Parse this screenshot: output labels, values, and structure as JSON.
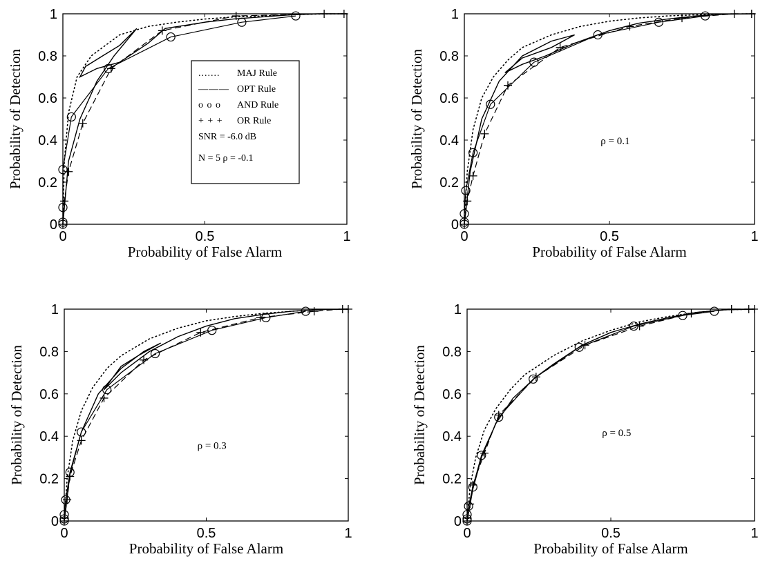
{
  "figure": {
    "legend_entries": [
      {
        "symbol": "dotted-line",
        "glyph": ".......",
        "label": "MAJ Rule"
      },
      {
        "symbol": "solid-line",
        "glyph": "———",
        "label": "OPT Rule"
      },
      {
        "symbol": "circle-marker",
        "glyph": "o o o",
        "label": "AND Rule"
      },
      {
        "symbol": "plus-marker",
        "glyph": "+ + +",
        "label": "OR   Rule"
      }
    ],
    "legend_snr": "SNR = -6.0 dB",
    "legend_n_rho": "N = 5    ρ = -0.1"
  },
  "chart_data": [
    {
      "type": "line",
      "panel": "top-left",
      "annotation": "",
      "xlabel": "Probability of False Alarm",
      "ylabel": "Probability of Detection",
      "xlim": [
        0,
        1
      ],
      "ylim": [
        0,
        1
      ],
      "xticks": [
        0,
        0.5,
        1
      ],
      "yticks": [
        0,
        0.2,
        0.4,
        0.6,
        0.8,
        1
      ],
      "legend": "center-right",
      "series": [
        {
          "name": "MAJ Rule",
          "style": "dotted",
          "x": [
            0,
            0.005,
            0.02,
            0.05,
            0.1,
            0.2,
            0.3,
            0.4,
            0.5,
            0.6,
            0.7,
            0.8,
            0.9,
            1
          ],
          "y": [
            0,
            0.3,
            0.53,
            0.7,
            0.8,
            0.9,
            0.94,
            0.96,
            0.975,
            0.985,
            0.99,
            0.995,
            0.999,
            1
          ]
        },
        {
          "name": "OPT Rule",
          "style": "solid",
          "x": [
            0,
            0.02,
            0.06,
            0.12,
            0.18,
            0.26,
            0.2,
            0.14,
            0.08,
            0.06,
            0.12,
            0.2,
            0.3,
            0.36,
            0.5,
            0.6,
            0.7,
            0.8,
            0.9,
            1
          ],
          "y": [
            0,
            0.3,
            0.5,
            0.68,
            0.8,
            0.93,
            0.85,
            0.8,
            0.75,
            0.7,
            0.74,
            0.77,
            0.86,
            0.93,
            0.96,
            0.975,
            0.985,
            0.995,
            1,
            1
          ]
        },
        {
          "name": "AND Rule",
          "style": "circle",
          "x": [
            0,
            0,
            0,
            0,
            0.03,
            0.16,
            0.38,
            0.63,
            0.82
          ],
          "y": [
            0,
            0.01,
            0.08,
            0.26,
            0.51,
            0.74,
            0.89,
            0.96,
            0.99
          ]
        },
        {
          "name": "OR Rule",
          "style": "plus",
          "x": [
            0,
            0.005,
            0.02,
            0.07,
            0.17,
            0.35,
            0.61,
            0.92,
            0.99
          ],
          "y": [
            0,
            0.11,
            0.25,
            0.48,
            0.74,
            0.92,
            0.99,
            1,
            1
          ]
        }
      ]
    },
    {
      "type": "line",
      "panel": "top-right",
      "annotation": "ρ = 0.1",
      "xlabel": "Probability of False Alarm",
      "ylabel": "Probability of Detection",
      "xlim": [
        0,
        1
      ],
      "ylim": [
        0,
        1
      ],
      "xticks": [
        0,
        0.5,
        1
      ],
      "yticks": [
        0,
        0.2,
        0.4,
        0.6,
        0.8,
        1
      ],
      "series": [
        {
          "name": "MAJ Rule",
          "style": "dotted",
          "x": [
            0,
            0.01,
            0.03,
            0.06,
            0.1,
            0.15,
            0.2,
            0.3,
            0.4,
            0.5,
            0.6,
            0.7,
            0.8,
            0.9,
            1
          ],
          "y": [
            0,
            0.25,
            0.45,
            0.6,
            0.7,
            0.78,
            0.84,
            0.9,
            0.94,
            0.965,
            0.98,
            0.99,
            0.995,
            0.999,
            1
          ]
        },
        {
          "name": "OPT Rule",
          "style": "solid",
          "x": [
            0,
            0.02,
            0.06,
            0.12,
            0.2,
            0.3,
            0.38,
            0.3,
            0.2,
            0.14,
            0.2,
            0.28,
            0.38,
            0.5,
            0.6,
            0.7,
            0.8,
            0.9,
            1
          ],
          "y": [
            0,
            0.25,
            0.5,
            0.68,
            0.8,
            0.87,
            0.9,
            0.84,
            0.79,
            0.72,
            0.76,
            0.8,
            0.86,
            0.92,
            0.955,
            0.975,
            0.99,
            0.998,
            1
          ]
        },
        {
          "name": "AND Rule",
          "style": "circle",
          "x": [
            0,
            0,
            0,
            0.005,
            0.03,
            0.09,
            0.24,
            0.46,
            0.67,
            0.83
          ],
          "y": [
            0,
            0.01,
            0.05,
            0.16,
            0.34,
            0.57,
            0.77,
            0.9,
            0.96,
            0.99
          ]
        },
        {
          "name": "OR Rule",
          "style": "plus",
          "x": [
            0,
            0.01,
            0.03,
            0.07,
            0.15,
            0.33,
            0.57,
            0.75,
            0.93,
            0.99
          ],
          "y": [
            0,
            0.11,
            0.23,
            0.43,
            0.66,
            0.84,
            0.94,
            0.98,
            1,
            1
          ]
        }
      ]
    },
    {
      "type": "line",
      "panel": "bottom-left",
      "annotation": "ρ = 0.3",
      "xlabel": "Probability of False Alarm",
      "ylabel": "Probability of Detection",
      "xlim": [
        0,
        1
      ],
      "ylim": [
        0,
        1
      ],
      "xticks": [
        0,
        0.5,
        1
      ],
      "yticks": [
        0,
        0.2,
        0.4,
        0.6,
        0.8,
        1
      ],
      "series": [
        {
          "name": "MAJ Rule",
          "style": "dotted",
          "x": [
            0,
            0.01,
            0.03,
            0.06,
            0.1,
            0.15,
            0.2,
            0.3,
            0.4,
            0.5,
            0.6,
            0.7,
            0.8,
            0.9,
            1
          ],
          "y": [
            0,
            0.2,
            0.38,
            0.52,
            0.63,
            0.72,
            0.78,
            0.86,
            0.91,
            0.945,
            0.965,
            0.98,
            0.99,
            0.998,
            1
          ]
        },
        {
          "name": "OPT Rule",
          "style": "solid",
          "x": [
            0,
            0.02,
            0.06,
            0.12,
            0.2,
            0.28,
            0.34,
            0.26,
            0.2,
            0.14,
            0.2,
            0.3,
            0.4,
            0.5,
            0.6,
            0.7,
            0.8,
            0.9,
            1
          ],
          "y": [
            0,
            0.22,
            0.42,
            0.6,
            0.72,
            0.8,
            0.84,
            0.78,
            0.73,
            0.62,
            0.7,
            0.8,
            0.87,
            0.92,
            0.955,
            0.975,
            0.99,
            0.998,
            1
          ]
        },
        {
          "name": "AND Rule",
          "style": "circle",
          "x": [
            0,
            0,
            0,
            0.005,
            0.02,
            0.06,
            0.15,
            0.32,
            0.52,
            0.71,
            0.85
          ],
          "y": [
            0,
            0.01,
            0.03,
            0.1,
            0.23,
            0.42,
            0.62,
            0.79,
            0.9,
            0.96,
            0.99
          ]
        },
        {
          "name": "OR Rule",
          "style": "plus",
          "x": [
            0,
            0.01,
            0.02,
            0.06,
            0.14,
            0.28,
            0.48,
            0.69,
            0.88,
            0.98,
            1.0
          ],
          "y": [
            0,
            0.1,
            0.21,
            0.38,
            0.58,
            0.76,
            0.89,
            0.96,
            0.99,
            1,
            1
          ]
        }
      ]
    },
    {
      "type": "line",
      "panel": "bottom-right",
      "annotation": "ρ = 0.5",
      "xlabel": "Probability of False Alarm",
      "ylabel": "Probability of Detection",
      "xlim": [
        0,
        1
      ],
      "ylim": [
        0,
        1
      ],
      "xticks": [
        0,
        0.5,
        1
      ],
      "yticks": [
        0,
        0.2,
        0.4,
        0.6,
        0.8,
        1
      ],
      "series": [
        {
          "name": "MAJ Rule",
          "style": "dotted",
          "x": [
            0,
            0.01,
            0.03,
            0.06,
            0.1,
            0.15,
            0.2,
            0.3,
            0.4,
            0.5,
            0.6,
            0.7,
            0.8,
            0.9,
            1
          ],
          "y": [
            0,
            0.16,
            0.3,
            0.43,
            0.53,
            0.62,
            0.69,
            0.78,
            0.85,
            0.9,
            0.94,
            0.965,
            0.985,
            0.997,
            1
          ]
        },
        {
          "name": "OPT Rule",
          "style": "solid",
          "x": [
            0,
            0.02,
            0.05,
            0.1,
            0.16,
            0.24,
            0.3,
            0.4,
            0.5,
            0.6,
            0.7,
            0.8,
            0.9,
            1
          ],
          "y": [
            0,
            0.15,
            0.3,
            0.46,
            0.58,
            0.68,
            0.74,
            0.83,
            0.89,
            0.93,
            0.96,
            0.985,
            0.997,
            1
          ]
        },
        {
          "name": "AND Rule",
          "style": "circle",
          "x": [
            0,
            0,
            0,
            0.005,
            0.02,
            0.05,
            0.11,
            0.23,
            0.39,
            0.58,
            0.75,
            0.86
          ],
          "y": [
            0,
            0.01,
            0.03,
            0.07,
            0.16,
            0.31,
            0.49,
            0.67,
            0.82,
            0.92,
            0.97,
            0.99
          ]
        },
        {
          "name": "OR Rule",
          "style": "plus",
          "x": [
            0,
            0.01,
            0.02,
            0.06,
            0.11,
            0.24,
            0.41,
            0.6,
            0.78,
            0.92,
            0.98,
            1.0
          ],
          "y": [
            0,
            0.08,
            0.17,
            0.32,
            0.5,
            0.68,
            0.83,
            0.92,
            0.98,
            1,
            1,
            1
          ]
        }
      ]
    }
  ]
}
